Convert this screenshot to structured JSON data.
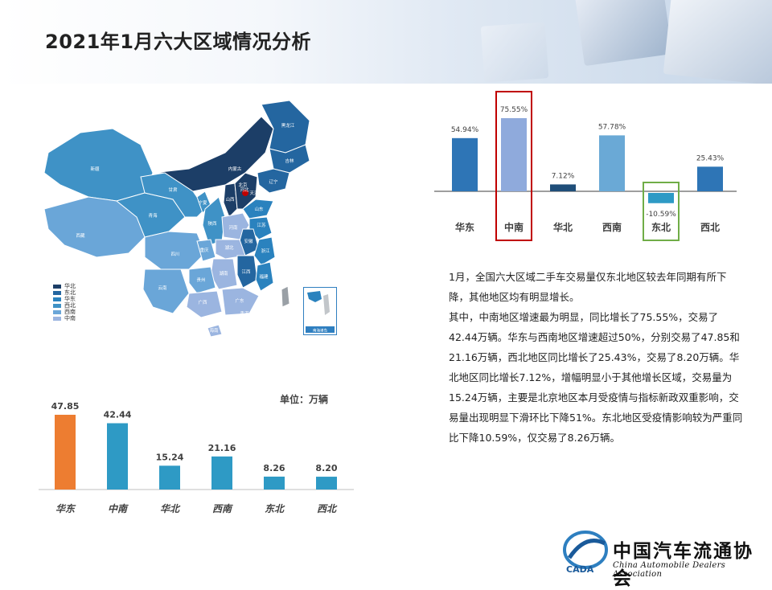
{
  "title": "2021年1月六大区域情况分析",
  "map": {
    "legend": [
      {
        "label": "华北",
        "color": "#1c3e67"
      },
      {
        "label": "东北",
        "color": "#2466a0"
      },
      {
        "label": "华东",
        "color": "#2a82be"
      },
      {
        "label": "西北",
        "color": "#3f92c6"
      },
      {
        "label": "西南",
        "color": "#6aa6d8"
      },
      {
        "label": "中南",
        "color": "#9bb5e0"
      }
    ],
    "labels": [
      "黑龙江",
      "吉林",
      "辽宁",
      "内蒙古",
      "新疆",
      "甘肃",
      "宁夏",
      "青海",
      "西藏",
      "四川",
      "陕西",
      "山西",
      "河北",
      "北京",
      "天津",
      "山东",
      "河南",
      "江苏",
      "安徽",
      "上海",
      "湖北",
      "浙江",
      "重庆",
      "江西",
      "湖南",
      "福建",
      "贵州",
      "广西",
      "广东",
      "云南",
      "海南",
      "香港",
      "澳门",
      "台湾"
    ],
    "inset_label": "南海诸岛"
  },
  "chart_data": [
    {
      "type": "bar",
      "categories": [
        "华东",
        "中南",
        "华北",
        "西南",
        "东北",
        "西北"
      ],
      "values": [
        54.94,
        75.55,
        7.12,
        57.78,
        -10.59,
        25.43
      ],
      "value_labels": [
        "54.94%",
        "75.55%",
        "7.12%",
        "57.78%",
        "-10.59%",
        "25.43%"
      ],
      "colors": [
        "#2e75b6",
        "#8faadc",
        "#1f4e79",
        "#6aa9d6",
        "#2e9ac5",
        "#2e75b6"
      ],
      "highlights": [
        {
          "category": "中南",
          "color": "#c00000"
        },
        {
          "category": "东北",
          "color": "#70ad47"
        }
      ]
    },
    {
      "type": "bar",
      "categories": [
        "华东",
        "中南",
        "华北",
        "西南",
        "东北",
        "西北"
      ],
      "values": [
        47.85,
        42.44,
        15.24,
        21.16,
        8.26,
        8.2
      ],
      "value_labels": [
        "47.85",
        "42.44",
        "15.24",
        "21.16",
        "8.26",
        "8.20"
      ],
      "colors": [
        "#ed7d31",
        "#2e9ac5",
        "#2e9ac5",
        "#2e9ac5",
        "#2e9ac5",
        "#2e9ac5"
      ],
      "unit_label": "单位：万辆"
    }
  ],
  "paragraphs": [
    "1月，全国六大区域二手车交易量仅东北地区较去年同期有所下降，其他地区均有明显增长。",
    "其中，中南地区增速最为明显，同比增长了75.55%，交易了42.44万辆。华东与西南地区增速超过50%，分别交易了47.85和21.16万辆，西北地区同比增长了25.43%，交易了8.20万辆。华北地区同比增长7.12%，增幅明显小于其他增长区域，交易量为15.24万辆，主要是北京地区本月受疫情与指标新政双重影响，交易量出现明显下滑环比下降51%。东北地区受疫情影响较为严重同比下降10.59%，仅交易了8.26万辆。"
  ],
  "logo": {
    "name": "中国汽车流通协会",
    "english": "China Automobile Dealers Association",
    "badge": "CADA"
  }
}
